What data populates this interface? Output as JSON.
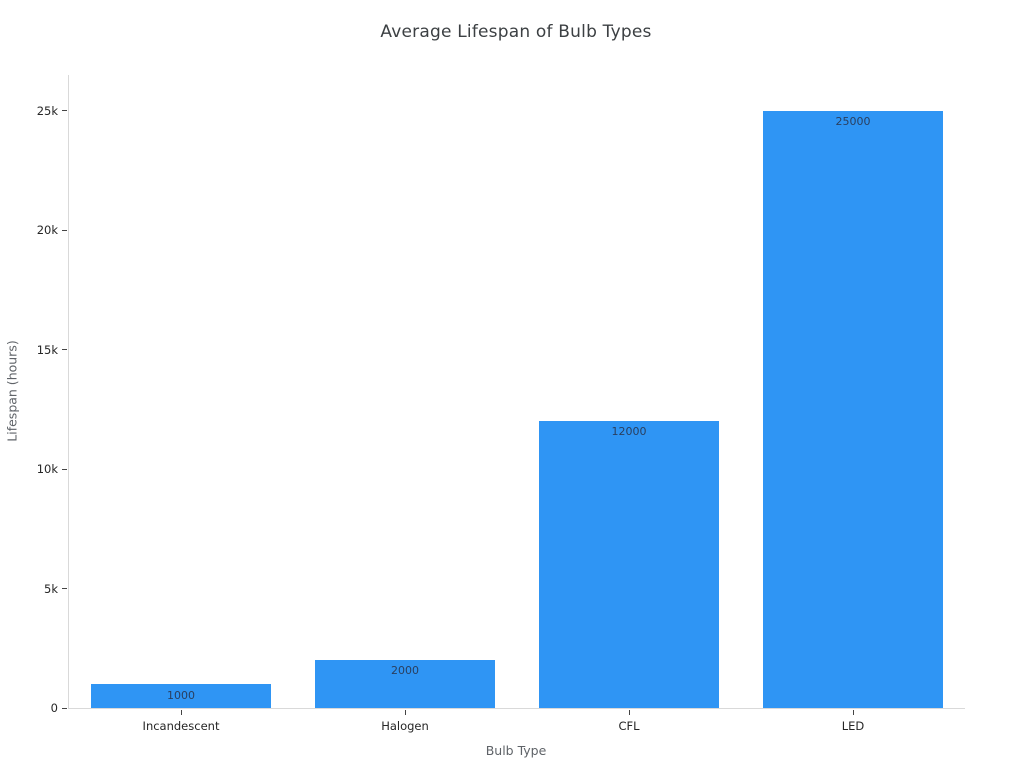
{
  "chart_data": {
    "type": "bar",
    "title": "Average Lifespan of Bulb Types",
    "xlabel": "Bulb Type",
    "ylabel": "Lifespan (hours)",
    "categories": [
      "Incandescent",
      "Halogen",
      "CFL",
      "LED"
    ],
    "values": [
      1000,
      2000,
      12000,
      25000
    ],
    "bar_value_labels": [
      "1000",
      "2000",
      "12000",
      "25000"
    ],
    "yticks": [
      {
        "value": 0,
        "label": "0"
      },
      {
        "value": 5000,
        "label": "5k"
      },
      {
        "value": 10000,
        "label": "10k"
      },
      {
        "value": 15000,
        "label": "15k"
      },
      {
        "value": 20000,
        "label": "20k"
      },
      {
        "value": 25000,
        "label": "25k"
      }
    ],
    "ylim": [
      0,
      26500
    ],
    "grid": false,
    "legend": "none",
    "colors": {
      "bar_fill": "#2f95f4",
      "bar_value_label": "#2a3f5f",
      "axis_line": "#d9d9d9",
      "tick_mark": "#444444",
      "tick_label": "#262626",
      "axis_title": "#5f6368",
      "chart_title": "#3c4043",
      "background": "#ffffff"
    }
  }
}
